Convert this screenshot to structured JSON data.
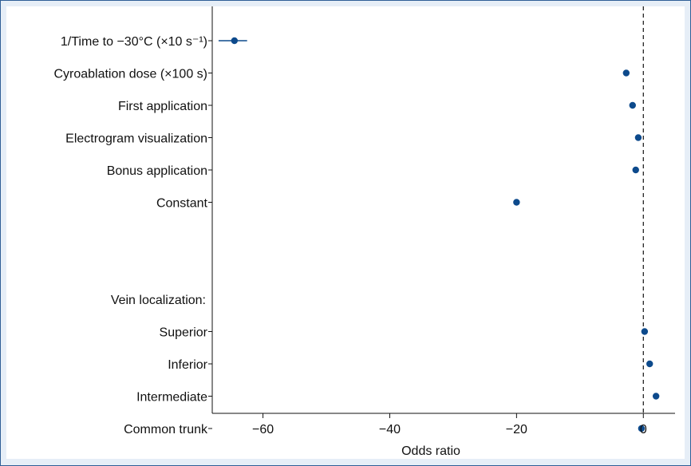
{
  "chart_data": {
    "type": "scatter",
    "xlabel": "Odds ratio",
    "ylabel": "",
    "xlim": [
      -68,
      5
    ],
    "xticks": [
      -60,
      -40,
      -20,
      0
    ],
    "xtick_labels": [
      "−60",
      "−40",
      "−20",
      "0"
    ],
    "reference_line": 0,
    "grid": false,
    "point_color": "#0d4a8c",
    "rows": [
      {
        "label": "1/Time to −30°C (×10 s⁻¹)",
        "value": -64.5,
        "ci": [
          -67,
          -62.5
        ]
      },
      {
        "label": "Cyroablation dose (×100 s)",
        "value": -2.7
      },
      {
        "label": "First application",
        "value": -1.7
      },
      {
        "label": "Electrogram visualization",
        "value": -0.8
      },
      {
        "label": "Bonus application",
        "value": -1.2
      },
      {
        "label": "Constant",
        "value": -20.0
      },
      {
        "label": "",
        "value": null
      },
      {
        "label": "",
        "value": null
      },
      {
        "label": "Vein localization:",
        "value": null,
        "header": true
      },
      {
        "label": "Superior",
        "value": 0.2
      },
      {
        "label": "Inferior",
        "value": 1.0
      },
      {
        "label": "Intermediate",
        "value": 2.0
      },
      {
        "label": "Common trunk",
        "value": -0.3
      }
    ]
  }
}
